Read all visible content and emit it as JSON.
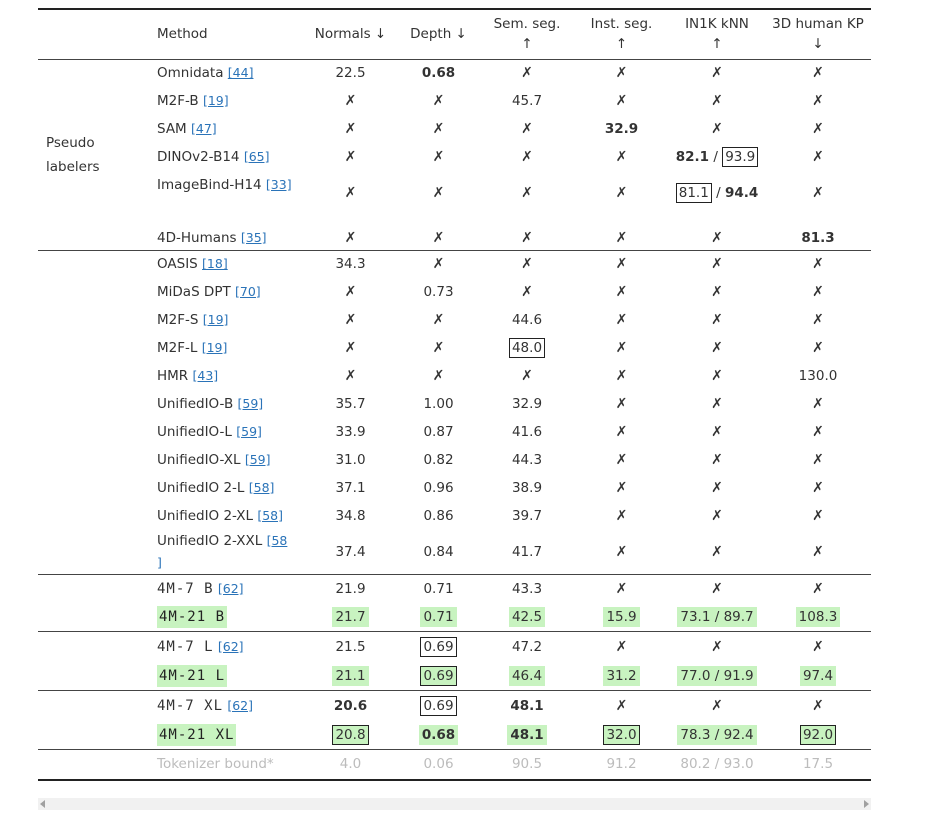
{
  "header": {
    "method": "Method",
    "normals": "Normals ↓",
    "depth": "Depth ↓",
    "semseg_1": "Sem. seg.",
    "semseg_2": "↑",
    "instseg_1": "Inst. seg.",
    "instseg_2": "↑",
    "knn_1": "IN1K kNN",
    "knn_2": "↑",
    "kp_1": "3D human KP",
    "kp_2": "↓"
  },
  "x": "✗",
  "pseudo_label": "Pseudo labelers",
  "slash": "/",
  "pseudo": [
    {
      "name": "Omnidata",
      "ref": "[44]",
      "normals": "22.5",
      "depth": "0.68"
    },
    {
      "name": "M2F-B",
      "ref": "[19]",
      "semseg": "45.7"
    },
    {
      "name": "SAM",
      "ref": "[47]",
      "instseg": "32.9"
    },
    {
      "name": "DINOv2-B14",
      "ref": "[65]",
      "knn_a": "82.1",
      "knn_b": "93.9"
    },
    {
      "name": "ImageBind-H14",
      "ref": "[33]",
      "knn_a": "81.1",
      "knn_b": "94.4"
    },
    {
      "name": "4D-Humans",
      "ref": "[35]",
      "kp": "81.3"
    }
  ],
  "baselines": [
    {
      "name": "OASIS",
      "ref": "[18]",
      "normals": "34.3"
    },
    {
      "name": "MiDaS DPT",
      "ref": "[70]",
      "depth": "0.73"
    },
    {
      "name": "M2F-S",
      "ref": "[19]",
      "semseg": "44.6"
    },
    {
      "name": "M2F-L",
      "ref": "[19]",
      "semseg": "48.0"
    },
    {
      "name": "HMR",
      "ref": "[43]",
      "kp": "130.0"
    },
    {
      "name": "UnifiedIO-B",
      "ref": "[59]",
      "normals": "35.7",
      "depth": "1.00",
      "semseg": "32.9"
    },
    {
      "name": "UnifiedIO-L",
      "ref": "[59]",
      "normals": "33.9",
      "depth": "0.87",
      "semseg": "41.6"
    },
    {
      "name": "UnifiedIO-XL",
      "ref": "[59]",
      "normals": "31.0",
      "depth": "0.82",
      "semseg": "44.3"
    },
    {
      "name": "UnifiedIO 2-L",
      "ref": "[58]",
      "normals": "37.1",
      "depth": "0.96",
      "semseg": "38.9"
    },
    {
      "name": "UnifiedIO 2-XL",
      "ref": "[58]",
      "normals": "34.8",
      "depth": "0.86",
      "semseg": "39.7"
    },
    {
      "name": "UnifiedIO 2-XXL",
      "ref_a": "[58",
      "ref_b": "]",
      "normals": "37.4",
      "depth": "0.84",
      "semseg": "41.7"
    }
  ],
  "models": {
    "b7": {
      "name": "4M-7  B",
      "ref": "[62]",
      "normals": "21.9",
      "depth": "0.71",
      "semseg": "43.3"
    },
    "b21": {
      "name": "4M-21  B",
      "normals": "21.7",
      "depth": "0.71",
      "semseg": "42.5",
      "instseg": "15.9",
      "knn": "73.1 / 89.7",
      "kp": "108.3"
    },
    "l7": {
      "name": "4M-7  L",
      "ref": "[62]",
      "normals": "21.5",
      "depth": "0.69",
      "semseg": "47.2"
    },
    "l21": {
      "name": "4M-21  L",
      "normals": "21.1",
      "depth": "0.69",
      "semseg": "46.4",
      "instseg": "31.2",
      "knn": "77.0 / 91.9",
      "kp": "97.4"
    },
    "xl7": {
      "name": "4M-7  XL",
      "ref": "[62]",
      "normals": "20.6",
      "depth": "0.69",
      "semseg": "48.1"
    },
    "xl21": {
      "name": "4M-21  XL",
      "normals": "20.8",
      "depth": "0.68",
      "semseg": "48.1",
      "instseg": "32.0",
      "knn": "78.3 / 92.4",
      "kp": "92.0"
    }
  },
  "bound": {
    "name": "Tokenizer bound*",
    "normals": "4.0",
    "depth": "0.06",
    "semseg": "90.5",
    "instseg": "91.2",
    "knn": "80.2 / 93.0",
    "kp": "17.5"
  },
  "colors": {
    "highlight": "#c8f3c0",
    "link": "#2a73b8",
    "muted": "#bcbcbc"
  }
}
